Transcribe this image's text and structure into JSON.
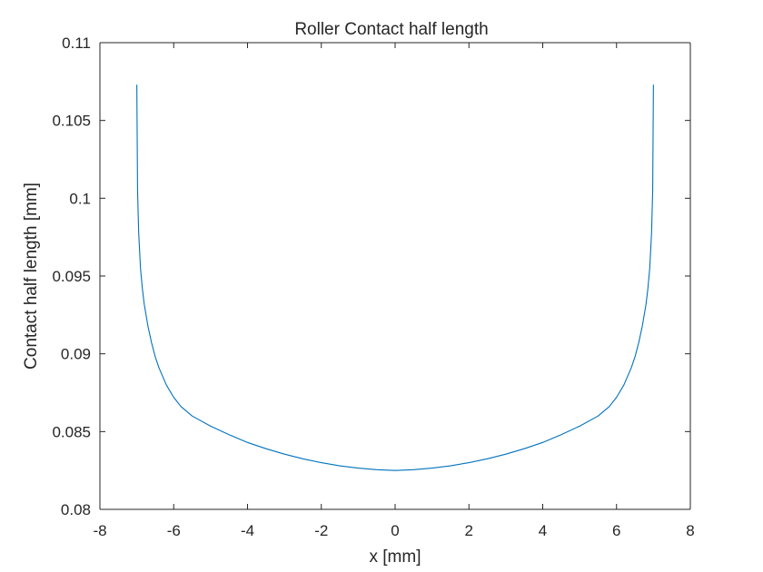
{
  "chart_data": {
    "type": "line",
    "title": "Roller Contact half length",
    "xlabel": "x [mm]",
    "ylabel": "Contact half length [mm]",
    "xlim": [
      -8,
      8
    ],
    "ylim": [
      0.08,
      0.11
    ],
    "xticks": [
      -8,
      -6,
      -4,
      -2,
      0,
      2,
      4,
      6,
      8
    ],
    "xtick_labels": [
      "-8",
      "-6",
      "-4",
      "-2",
      "0",
      "2",
      "4",
      "6",
      "8"
    ],
    "yticks": [
      0.08,
      0.085,
      0.09,
      0.095,
      0.1,
      0.105,
      0.11
    ],
    "ytick_labels": [
      "0.08",
      "0.085",
      "0.09",
      "0.095",
      "0.1",
      "0.105",
      "0.11"
    ],
    "grid": false,
    "series": [
      {
        "name": "contact half length",
        "color": "#0072BD",
        "x": [
          -7.0,
          -6.98,
          -6.95,
          -6.9,
          -6.85,
          -6.8,
          -6.7,
          -6.6,
          -6.5,
          -6.4,
          -6.2,
          -6.0,
          -5.8,
          -5.5,
          -5.0,
          -4.5,
          -4.0,
          -3.5,
          -3.0,
          -2.5,
          -2.0,
          -1.5,
          -1.0,
          -0.5,
          0.0,
          0.5,
          1.0,
          1.5,
          2.0,
          2.5,
          3.0,
          3.5,
          4.0,
          4.5,
          5.0,
          5.5,
          5.8,
          6.0,
          6.2,
          6.4,
          6.5,
          6.6,
          6.7,
          6.8,
          6.85,
          6.9,
          6.95,
          6.98,
          7.0
        ],
        "y": [
          0.1073,
          0.1005,
          0.0978,
          0.0955,
          0.0942,
          0.0932,
          0.0918,
          0.0907,
          0.0898,
          0.0891,
          0.088,
          0.0872,
          0.0866,
          0.086,
          0.08535,
          0.0848,
          0.0843,
          0.0839,
          0.08355,
          0.08325,
          0.083,
          0.0828,
          0.08265,
          0.08255,
          0.0825,
          0.08255,
          0.08265,
          0.0828,
          0.083,
          0.08325,
          0.08355,
          0.0839,
          0.0843,
          0.0848,
          0.08535,
          0.086,
          0.0866,
          0.0872,
          0.088,
          0.0891,
          0.0898,
          0.0907,
          0.0918,
          0.0932,
          0.0942,
          0.0955,
          0.0978,
          0.1005,
          0.1073
        ]
      }
    ]
  },
  "style": {
    "axis_color": "#262626",
    "background": "#ffffff"
  }
}
